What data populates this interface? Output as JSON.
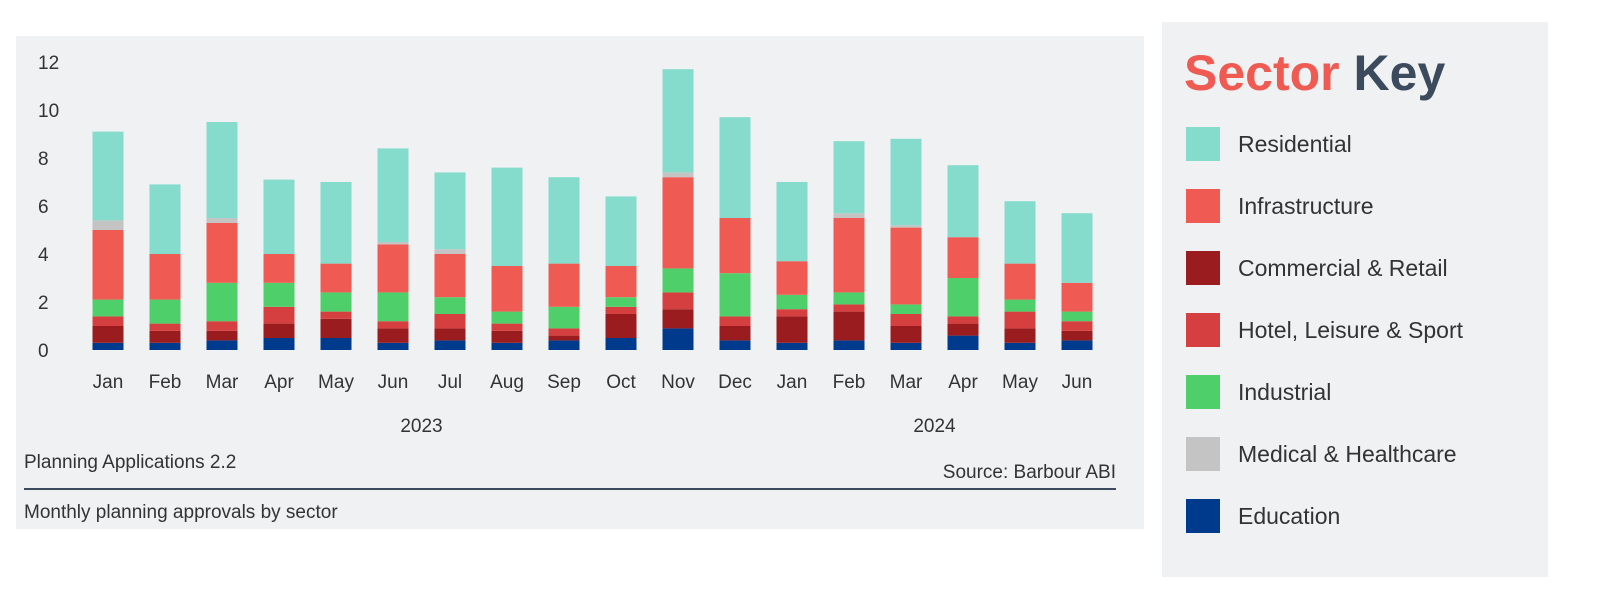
{
  "chart_data": {
    "type": "bar",
    "stacked": true,
    "categories": [
      "Jan",
      "Feb",
      "Mar",
      "Apr",
      "May",
      "Jun",
      "Jul",
      "Aug",
      "Sep",
      "Oct",
      "Nov",
      "Dec",
      "Jan",
      "Feb",
      "Mar",
      "Apr",
      "May",
      "Jun"
    ],
    "year_groups": [
      {
        "label": "2023",
        "start": 0,
        "end": 11
      },
      {
        "label": "2024",
        "start": 12,
        "end": 17
      }
    ],
    "ylim": [
      0,
      12
    ],
    "yticks": [
      0,
      2,
      4,
      6,
      8,
      10,
      12
    ],
    "series": [
      {
        "name": "Education",
        "color": "#003a8c",
        "values": [
          0.3,
          0.3,
          0.4,
          0.5,
          0.5,
          0.3,
          0.4,
          0.3,
          0.4,
          0.5,
          0.9,
          0.4,
          0.3,
          0.4,
          0.3,
          0.6,
          0.3,
          0.4
        ]
      },
      {
        "name": "Commercial & Retail",
        "color": "#9b1c1f",
        "values": [
          0.7,
          0.5,
          0.4,
          0.6,
          0.8,
          0.6,
          0.5,
          0.5,
          0.2,
          1.0,
          0.8,
          0.6,
          1.1,
          1.2,
          0.7,
          0.5,
          0.6,
          0.4
        ]
      },
      {
        "name": "Hotel, Leisure & Sport",
        "color": "#d63f3f",
        "values": [
          0.4,
          0.3,
          0.4,
          0.7,
          0.3,
          0.3,
          0.6,
          0.3,
          0.3,
          0.3,
          0.7,
          0.4,
          0.3,
          0.3,
          0.5,
          0.3,
          0.7,
          0.4
        ]
      },
      {
        "name": "Industrial",
        "color": "#4ecf6a",
        "values": [
          0.7,
          1.0,
          1.6,
          1.0,
          0.8,
          1.2,
          0.7,
          0.5,
          0.9,
          0.4,
          1.0,
          1.8,
          0.6,
          0.5,
          0.4,
          1.6,
          0.5,
          0.4
        ]
      },
      {
        "name": "Infrastructure",
        "color": "#ef5a52",
        "values": [
          2.9,
          1.9,
          2.5,
          1.2,
          1.2,
          2.0,
          1.8,
          1.9,
          1.8,
          1.3,
          3.8,
          2.3,
          1.4,
          3.1,
          3.2,
          1.7,
          1.5,
          1.2
        ]
      },
      {
        "name": "Medical & Healthcare",
        "color": "#c4c4c4",
        "values": [
          0.4,
          0.0,
          0.2,
          0.0,
          0.0,
          0.1,
          0.2,
          0.0,
          0.0,
          0.0,
          0.2,
          0.0,
          0.0,
          0.2,
          0.1,
          0.0,
          0.0,
          0.0
        ]
      },
      {
        "name": "Residential",
        "color": "#86dccc",
        "values": [
          3.7,
          2.9,
          4.0,
          3.1,
          3.4,
          3.9,
          3.2,
          4.1,
          3.6,
          2.9,
          4.3,
          4.2,
          3.3,
          3.0,
          3.6,
          3.0,
          2.6,
          2.9
        ]
      }
    ],
    "title": "Planning Applications 2.2",
    "subtitle": "Monthly planning approvals by sector",
    "source": "Source: Barbour ABI",
    "grid": false,
    "legend_position": "right"
  },
  "key": {
    "title_word1": "Sector",
    "title_word2": "Key",
    "items": [
      {
        "label": "Residential",
        "color": "#86dccc"
      },
      {
        "label": "Infrastructure",
        "color": "#ef5a52"
      },
      {
        "label": "Commercial & Retail",
        "color": "#9b1c1f"
      },
      {
        "label": "Hotel, Leisure & Sport",
        "color": "#d63f3f"
      },
      {
        "label": "Industrial",
        "color": "#4ecf6a"
      },
      {
        "label": "Medical & Healthcare",
        "color": "#c4c4c4"
      },
      {
        "label": "Education",
        "color": "#003a8c"
      }
    ]
  }
}
